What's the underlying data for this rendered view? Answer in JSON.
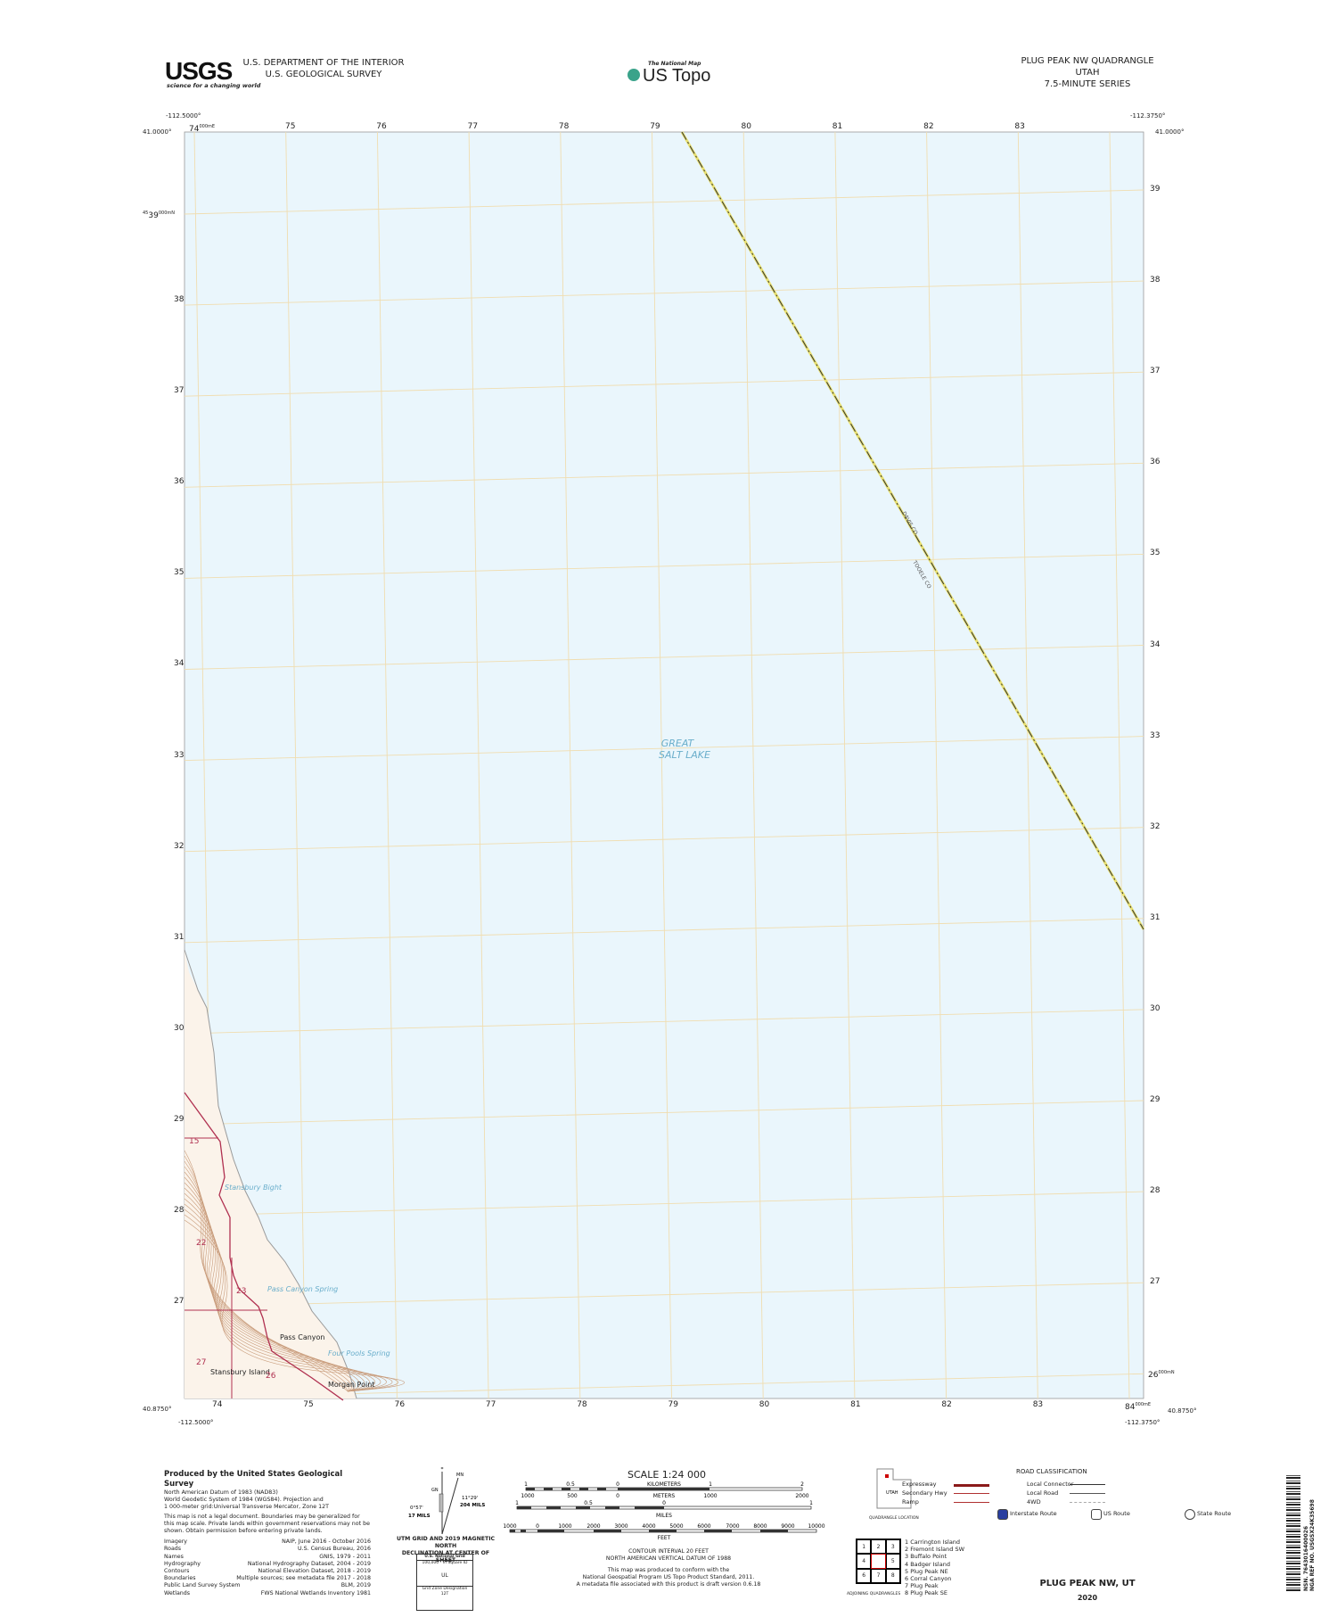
{
  "header": {
    "agency_logo": "USGS",
    "agency_tagline": "science for a changing world",
    "department": "U.S. DEPARTMENT OF THE INTERIOR",
    "survey": "U.S. GEOLOGICAL SURVEY",
    "program_small": "The National Map",
    "program": "US Topo",
    "quadrangle": "PLUG PEAK NW QUADRANGLE",
    "state": "UTAH",
    "series": "7.5-MINUTE SERIES"
  },
  "map": {
    "colors": {
      "water": "#eaf6fc",
      "grid": "#f0ddb0",
      "land": "#fbf3ea",
      "contour": "#c89b7a",
      "boundary": "#b03050",
      "county_line": "#e8e070"
    },
    "corners": {
      "nw_lon": "-112.5000°",
      "nw_lat": "41.0000°",
      "ne_lon": "-112.3750°",
      "ne_lat": "41.0000°",
      "sw_lon": "-112.5000°",
      "sw_lat": "40.8750°",
      "se_lon": "-112.3750°",
      "se_lat": "40.8750°"
    },
    "easting_first": "74",
    "easting_suffix": "000mE",
    "easting_last": "84",
    "eastings": [
      "75",
      "76",
      "77",
      "78",
      "79",
      "80",
      "81",
      "82",
      "83"
    ],
    "northing_top_prefix": "45",
    "northing_top": "39",
    "northing_bottom": "26",
    "northing_suffix": "000mN",
    "northings": [
      "38",
      "37",
      "36",
      "35",
      "34",
      "33",
      "32",
      "31",
      "30",
      "29",
      "28",
      "27"
    ],
    "right_northings": [
      "39",
      "38",
      "37",
      "36",
      "35",
      "34",
      "33",
      "32",
      "31",
      "30",
      "29",
      "28",
      "27"
    ],
    "bottom_eastings": [
      "74",
      "75",
      "76",
      "77",
      "78",
      "79",
      "80",
      "81",
      "82",
      "83"
    ],
    "lake_label": [
      "GREAT",
      "SALT LAKE"
    ],
    "county_labels": [
      "DAVIS CO",
      "TOOELE CO"
    ],
    "features": [
      {
        "name": "Stansbury Bight",
        "type": "water"
      },
      {
        "name": "Pass Canyon Spring",
        "type": "water"
      },
      {
        "name": "Pass Canyon",
        "type": "land"
      },
      {
        "name": "Four Pools Spring",
        "type": "water"
      },
      {
        "name": "Stansbury Island",
        "type": "land"
      },
      {
        "name": "Morgan Point",
        "type": "land"
      }
    ],
    "sections": [
      "15",
      "22",
      "23",
      "26",
      "27"
    ]
  },
  "credits": {
    "title": "Produced by the United States Geological Survey",
    "lines": [
      "North American Datum of 1983 (NAD83)",
      "World Geodetic System of 1984 (WGS84). Projection and",
      "1 000-meter grid:Universal Transverse Mercator, Zone 12T"
    ],
    "disclaimer": "This map is not a legal document. Boundaries may be generalized for this map scale. Private lands within government reservations may not be shown. Obtain permission before entering private lands.",
    "sources": [
      {
        "k": "Imagery",
        "v": "NAIP, June 2016 - October 2016"
      },
      {
        "k": "Roads",
        "v": "U.S. Census Bureau, 2016"
      },
      {
        "k": "Names",
        "v": "GNIS, 1979 - 2011"
      },
      {
        "k": "Hydrography",
        "v": "National Hydrography Dataset, 2004 - 2019"
      },
      {
        "k": "Contours",
        "v": "National Elevation Dataset, 2018 - 2019"
      },
      {
        "k": "Boundaries",
        "v": "Multiple sources; see metadata file 2017 - 2018"
      },
      {
        "k": "Public Land Survey System",
        "v": "BLM, 2019"
      },
      {
        "k": "Wetlands",
        "v": "FWS National Wetlands Inventory 1981"
      }
    ]
  },
  "declination": {
    "mn": "MN",
    "gn": "GN",
    "gn_angle": "0°57'",
    "gn_mils": "17 MILS",
    "mn_angle": "11°29'",
    "mn_mils": "204 MILS",
    "caption1": "UTM GRID AND 2019 MAGNETIC NORTH",
    "caption2": "DECLINATION AT CENTER OF SHEET",
    "grid_title": "U.S. National Grid",
    "grid_sub": "100,000 - m Square ID",
    "grid_id": "UL",
    "gzd_label": "Grid Zone Designation",
    "gzd": "12T"
  },
  "scale": {
    "title": "SCALE 1:24 000",
    "km_ticks": [
      "1",
      "0.5",
      "0",
      "1",
      "2"
    ],
    "km_label": "KILOMETERS",
    "m_ticks": [
      "1000",
      "500",
      "0",
      "1000",
      "2000"
    ],
    "m_label": "METERS",
    "mi_ticks": [
      "1",
      "0.5",
      "0",
      "1"
    ],
    "mi_label": "MILES",
    "ft_ticks": [
      "1000",
      "0",
      "1000",
      "2000",
      "3000",
      "4000",
      "5000",
      "6000",
      "7000",
      "8000",
      "9000",
      "10000"
    ],
    "ft_label": "FEET",
    "contour": "CONTOUR INTERVAL 20 FEET",
    "vdatum": "NORTH AMERICAN VERTICAL DATUM OF 1988",
    "conform1": "This map was produced to conform with the",
    "conform2": "National Geospatial Program US Topo Product Standard, 2011.",
    "conform3": "A metadata file associated with this product is draft version 0.6.18"
  },
  "location": {
    "state": "UTAH",
    "caption": "QUADRANGLE LOCATION"
  },
  "roads": {
    "title": "ROAD CLASSIFICATION",
    "items": [
      "Expressway",
      "Secondary Hwy",
      "Ramp",
      "Local Connector",
      "Local Road",
      "4WD"
    ],
    "shields": [
      "Interstate Route",
      "US Route",
      "State Route"
    ]
  },
  "adjoining": {
    "caption": "ADJOINING QUADRANGLES",
    "cells": [
      "1",
      "2",
      "3",
      "4",
      "",
      "5",
      "6",
      "7",
      "8"
    ],
    "names": [
      "1 Carrington Island",
      "2 Fremont Island SW",
      "3 Buffalo Point",
      "4 Badger Island",
      "5 Plug Peak NE",
      "6 Corral Canyon",
      "7 Plug Peak",
      "8 Plug Peak SE"
    ]
  },
  "footer": {
    "title": "PLUG PEAK NW,  UT",
    "year": "2020"
  },
  "barcode": {
    "line1": "NSN. 7643016400026",
    "line2": "NGA REF NO. USGSX24K35698"
  }
}
